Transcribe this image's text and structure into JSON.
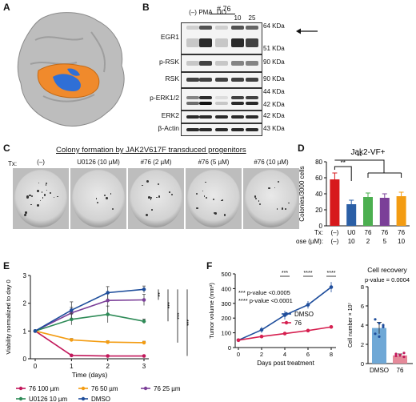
{
  "panels": {
    "A": "A",
    "B": "B",
    "C": "C",
    "D": "D",
    "E": "E",
    "F": "F"
  },
  "blot": {
    "group_label": "# 76",
    "lanes": [
      "(–)",
      "PMA",
      "UO",
      "10",
      "25"
    ],
    "rows": [
      {
        "name": "EGR1",
        "kda": [
          "64 KDa",
          "51 KDa"
        ]
      },
      {
        "name": "p-RSK",
        "kda": [
          "90 KDa"
        ]
      },
      {
        "name": "RSK",
        "kda": [
          "90 KDa"
        ]
      },
      {
        "name": "p-ERK1/2",
        "kda": [
          "44 KDa",
          "42 KDa"
        ]
      },
      {
        "name": "ERK2",
        "kda": [
          "42 KDa"
        ]
      },
      {
        "name": "β-Actin",
        "kda": [
          "43 KDa"
        ]
      }
    ]
  },
  "colony": {
    "title": "Colony formation by JAK2V617F transduced progenitors",
    "tx_label": "Tx:",
    "wells": [
      "(–)",
      "U0126 (10 µM)",
      "#76 (2 µM)",
      "#76 (5 µM)",
      "#76 (10 µM)"
    ]
  },
  "chart_data": [
    {
      "panel": "D",
      "type": "bar",
      "title": "Jak2-VF+",
      "ylabel": "Colonies/3000 cells",
      "ylim": [
        0,
        80
      ],
      "yticks": [
        0,
        20,
        40,
        60,
        80
      ],
      "tx_label": "Tx:",
      "dose_label": "Dose (µM):",
      "categories_tx": [
        "(–)",
        "U0",
        "76",
        "76",
        "76"
      ],
      "categories_dose": [
        "(–)",
        "10",
        "2",
        "5",
        "10"
      ],
      "values": [
        58,
        27,
        36,
        35,
        37
      ],
      "errors": [
        8,
        5,
        5,
        5,
        5
      ],
      "colors": [
        "#d7191c",
        "#2b5fa6",
        "#4caf50",
        "#7b3f98",
        "#f39c12"
      ],
      "significance": [
        "**",
        "**"
      ]
    },
    {
      "panel": "E",
      "type": "line",
      "xlabel": "Time (days)",
      "ylabel": "Viability normalized to day 0",
      "x": [
        0,
        1,
        2,
        3
      ],
      "ylim": [
        0,
        3
      ],
      "yticks": [
        0,
        1,
        2,
        3
      ],
      "series": [
        {
          "name": "76 100 µm",
          "color": "#c2185b",
          "values": [
            1,
            0.12,
            0.1,
            0.1
          ],
          "err": [
            0,
            0.03,
            0.03,
            0.03
          ]
        },
        {
          "name": "76 50 µm",
          "color": "#f39c12",
          "values": [
            1,
            0.68,
            0.6,
            0.58
          ],
          "err": [
            0,
            0.05,
            0.05,
            0.05
          ]
        },
        {
          "name": "76 25 µm",
          "color": "#7b3f98",
          "values": [
            1,
            1.65,
            2.1,
            2.12
          ],
          "err": [
            0,
            0.2,
            0.25,
            0.2
          ]
        },
        {
          "name": "U0126 10 µm",
          "color": "#2e8b57",
          "values": [
            1,
            1.42,
            1.6,
            1.35
          ],
          "err": [
            0,
            0.2,
            0.3,
            0.08
          ]
        },
        {
          "name": "DMSO",
          "color": "#1f4e9c",
          "values": [
            1,
            1.75,
            2.38,
            2.5
          ],
          "err": [
            0,
            0.3,
            0.22,
            0.12
          ]
        }
      ],
      "significance": [
        "**",
        "***",
        "***",
        "***"
      ]
    },
    {
      "panel": "F-left",
      "type": "line",
      "xlabel": "Days post treatment",
      "ylabel": "Tumor volume (mm³)",
      "x": [
        0,
        2,
        4,
        6,
        8
      ],
      "ylim": [
        0,
        500
      ],
      "yticks": [
        0,
        100,
        200,
        300,
        400,
        500
      ],
      "xticks": [
        0,
        2,
        4,
        6,
        8
      ],
      "series": [
        {
          "name": "DMSO",
          "color": "#1f4e9c",
          "values": [
            50,
            120,
            220,
            290,
            410
          ],
          "err": [
            8,
            20,
            30,
            25,
            35
          ]
        },
        {
          "name": "76",
          "color": "#d62050",
          "values": [
            50,
            75,
            95,
            115,
            140
          ],
          "err": [
            5,
            8,
            10,
            10,
            12
          ]
        }
      ],
      "annotations": [
        "*** p-value <0.0005",
        "**** p-value <0.0001"
      ],
      "significance": [
        "***",
        "****",
        "****"
      ]
    },
    {
      "panel": "F-right",
      "type": "bar",
      "title": "Cell recovery",
      "subtitle": "p-value = 0.0004",
      "ylabel": "Cell number × 10⁷",
      "ylim": [
        0,
        8
      ],
      "yticks": [
        0,
        2,
        4,
        6,
        8
      ],
      "categories": [
        "DMSO",
        "76"
      ],
      "values": [
        3.7,
        0.85
      ],
      "errors": [
        0.6,
        0.15
      ],
      "colors": [
        "#6fa8d6",
        "#e58a9a"
      ],
      "points": [
        [
          4.6,
          4.2,
          3.8,
          3.1,
          2.8,
          4.0
        ],
        [
          1.0,
          0.9,
          0.7,
          0.8,
          0.9,
          1.1
        ]
      ]
    }
  ]
}
